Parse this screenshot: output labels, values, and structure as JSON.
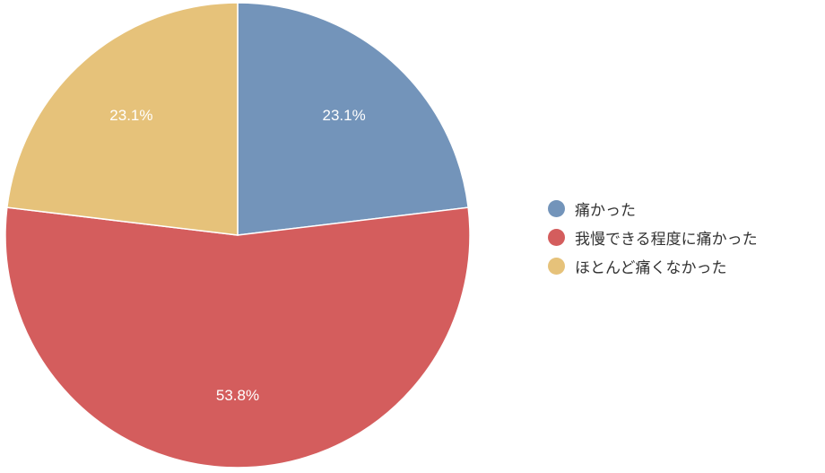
{
  "chart_data": {
    "type": "pie",
    "title": "",
    "series": [
      {
        "labels": [
          "痛かった",
          "我慢できる程度に痛かった",
          "ほとんど痛くなかった"
        ],
        "values": [
          23.1,
          53.8,
          23.1
        ],
        "value_labels": [
          "23.1%",
          "53.8%",
          "23.1%"
        ],
        "colors": [
          "#7394ba",
          "#d45d5d",
          "#e6c27a"
        ]
      }
    ],
    "start_angle": "12 o'clock",
    "direction": "clockwise",
    "legend_position": "right"
  }
}
